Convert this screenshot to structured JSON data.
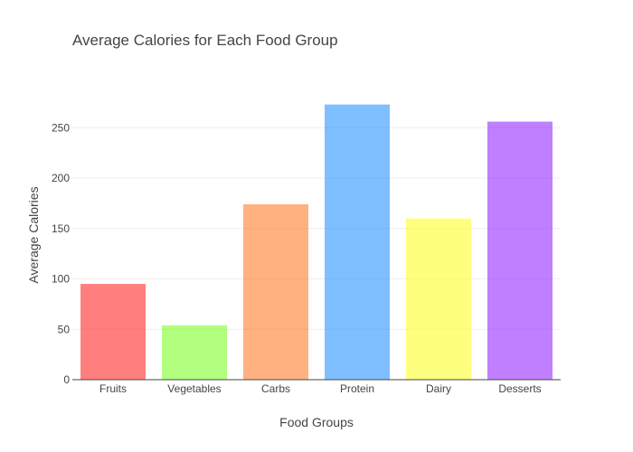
{
  "chart_data": {
    "type": "bar",
    "title": "Average Calories for Each Food Group",
    "xlabel": "Food Groups",
    "ylabel": "Average Calories",
    "categories": [
      "Fruits",
      "Vegetables",
      "Carbs",
      "Protein",
      "Dairy",
      "Desserts"
    ],
    "values": [
      95,
      54,
      174,
      273,
      160,
      256
    ],
    "colors": [
      "#ff0000",
      "#66ff00",
      "#ff6600",
      "#0080ff",
      "#ffff00",
      "#8000ff"
    ],
    "ylim": [
      0,
      287
    ],
    "yticks": [
      0,
      50,
      100,
      150,
      200,
      250
    ],
    "grid": true,
    "legend": "none"
  }
}
